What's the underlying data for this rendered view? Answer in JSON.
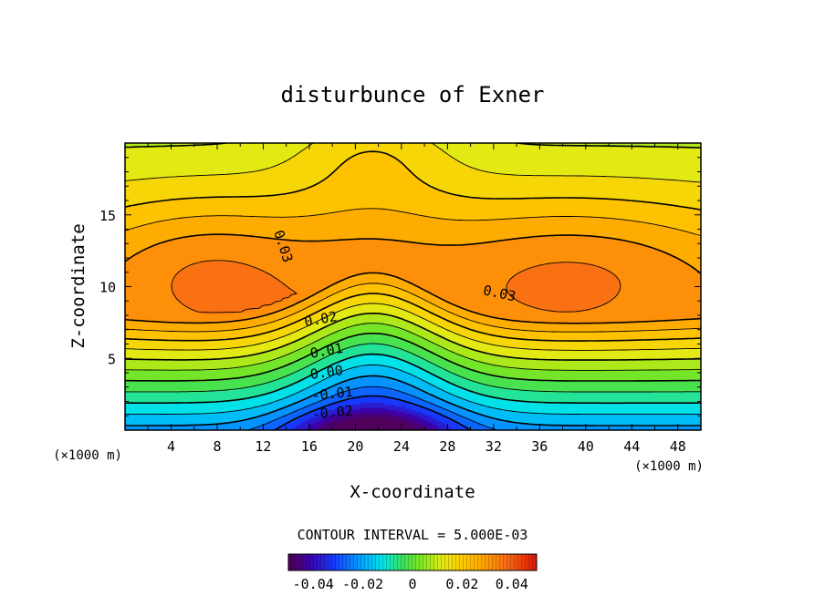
{
  "chart_data": {
    "type": "heatmap",
    "title": "disturbunce of Exner",
    "xlabel": "X-coordinate",
    "ylabel": "Z-coordinate",
    "x_units": "(×1000 m)",
    "y_units": "(×1000 m)",
    "xlim": [
      0,
      50
    ],
    "ylim": [
      0,
      20
    ],
    "x_ticks": [
      "4",
      "8",
      "12",
      "16",
      "20",
      "24",
      "28",
      "32",
      "36",
      "40",
      "44",
      "48"
    ],
    "x_tick_values": [
      4,
      8,
      12,
      16,
      20,
      24,
      28,
      32,
      36,
      40,
      44,
      48
    ],
    "y_ticks": [
      "5",
      "10",
      "15"
    ],
    "y_tick_values": [
      5,
      10,
      15
    ],
    "contour_interval_text": "CONTOUR INTERVAL = 5.000E-03",
    "contour_interval": 0.005,
    "contour_labels": [
      {
        "text": "0.03",
        "x": 13.7,
        "z": 12.8,
        "angle": 72
      },
      {
        "text": "0.03",
        "x": 32.5,
        "z": 9.5,
        "angle": 12
      },
      {
        "text": "0.02",
        "x": 17.0,
        "z": 7.7,
        "angle": -10
      },
      {
        "text": "0.01",
        "x": 17.5,
        "z": 5.5,
        "angle": -10
      },
      {
        "text": "0.00",
        "x": 17.5,
        "z": 4.0,
        "angle": -8
      },
      {
        "text": "-0.01",
        "x": 18.0,
        "z": 2.5,
        "angle": -6
      },
      {
        "text": "-0.02",
        "x": 18.0,
        "z": 1.2,
        "angle": -5
      }
    ],
    "field_extremes": {
      "max": 0.04,
      "max_locations": [
        [
          7.5,
          11.7
        ],
        [
          38.5,
          11.7
        ]
      ],
      "min": -0.04,
      "min_location": [
        21,
        0
      ]
    },
    "colorbar": {
      "range": [
        -0.05,
        0.05
      ],
      "tick_labels": [
        "-0.04",
        "-0.02",
        "0",
        "0.02",
        "0.04"
      ],
      "tick_values": [
        -0.04,
        -0.02,
        0,
        0.02,
        0.04
      ]
    },
    "colors": {
      "min_color": "#1e3cff",
      "max_color": "#f03c0a",
      "zero_color": "#6ee628",
      "line_color": "#000000"
    }
  }
}
